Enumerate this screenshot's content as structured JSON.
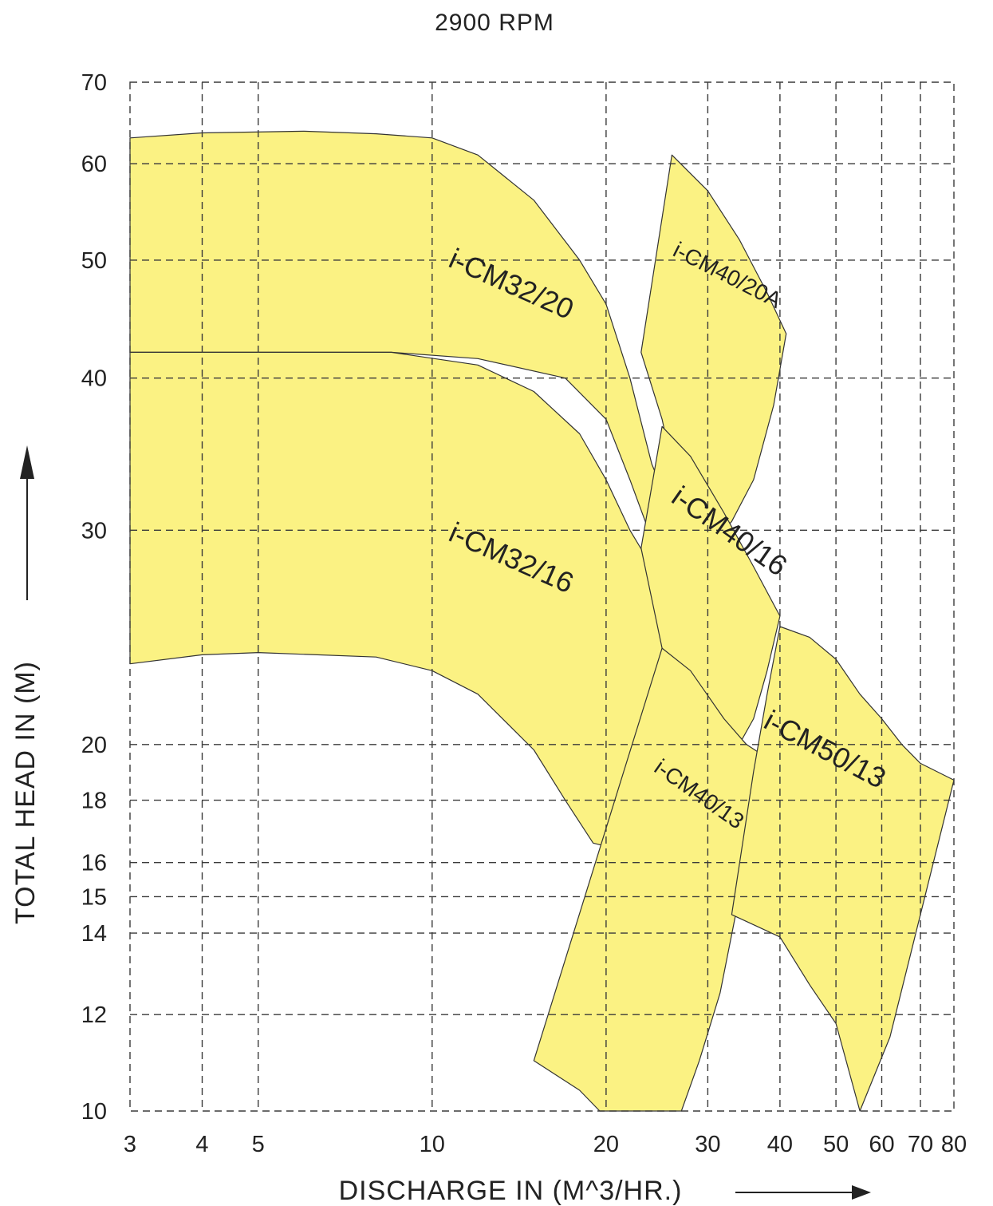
{
  "chart_data": {
    "type": "area",
    "title": "2900 RPM",
    "xlabel": "DISCHARGE IN (M^3/HR.)",
    "ylabel": "TOTAL HEAD IN (M)",
    "x_scale": "log",
    "y_scale": "log",
    "xlim": [
      3,
      80
    ],
    "ylim": [
      10,
      70
    ],
    "x_ticks": [
      3,
      4,
      5,
      10,
      20,
      30,
      40,
      50,
      60,
      70,
      80
    ],
    "x_tick_labels": [
      "3",
      "4",
      "5",
      "10",
      "20",
      "30",
      "40",
      "50",
      "60",
      "70",
      "80"
    ],
    "y_ticks": [
      10,
      12,
      14,
      15,
      16,
      18,
      20,
      30,
      40,
      50,
      60,
      70
    ],
    "y_tick_labels": [
      "10",
      "12",
      "14",
      "15",
      "16",
      "18",
      "20",
      "30",
      "40",
      "50",
      "60",
      "70"
    ],
    "grid": true,
    "fill_color": "#fbf283",
    "series": [
      {
        "name": "i-CM32/20",
        "label_at": [
          13.5,
          47
        ],
        "label_angle": 24,
        "points": [
          [
            3,
            63
          ],
          [
            4,
            63.6
          ],
          [
            6,
            63.8
          ],
          [
            8,
            63.5
          ],
          [
            10,
            63
          ],
          [
            12,
            61
          ],
          [
            15,
            56
          ],
          [
            18,
            50
          ],
          [
            20,
            46
          ],
          [
            22,
            40
          ],
          [
            24,
            34
          ],
          [
            26,
            31
          ],
          [
            24,
            29.5
          ],
          [
            22,
            33
          ],
          [
            20,
            37
          ],
          [
            17,
            40
          ],
          [
            12,
            41.5
          ],
          [
            8.5,
            42
          ],
          [
            5,
            42
          ],
          [
            3,
            42
          ]
        ]
      },
      {
        "name": "i-CM32/16",
        "label_at": [
          13.5,
          28
        ],
        "label_angle": 24,
        "points": [
          [
            3,
            42
          ],
          [
            5,
            42
          ],
          [
            8.5,
            42
          ],
          [
            12,
            41
          ],
          [
            15,
            39
          ],
          [
            18,
            36
          ],
          [
            20,
            33
          ],
          [
            22,
            30
          ],
          [
            24,
            28
          ],
          [
            26,
            26
          ],
          [
            24.5,
            23
          ],
          [
            23.5,
            19
          ],
          [
            22,
            17
          ],
          [
            20,
            16.5
          ],
          [
            19,
            16.6
          ],
          [
            17,
            18
          ],
          [
            15,
            19.8
          ],
          [
            12,
            22
          ],
          [
            10,
            23
          ],
          [
            8,
            23.6
          ],
          [
            5,
            23.8
          ],
          [
            4,
            23.7
          ],
          [
            3,
            23.3
          ]
        ]
      },
      {
        "name": "i-CM40/20A",
        "label_at": [
          32,
          48
        ],
        "label_angle": 27,
        "points": [
          [
            26,
            61
          ],
          [
            30,
            57
          ],
          [
            34,
            52
          ],
          [
            38,
            47
          ],
          [
            41,
            43.5
          ],
          [
            39,
            38
          ],
          [
            36,
            33
          ],
          [
            33,
            30.5
          ],
          [
            31,
            29.5
          ],
          [
            28,
            31
          ],
          [
            26,
            34
          ],
          [
            25,
            37
          ],
          [
            23,
            42
          ]
        ]
      },
      {
        "name": "i-CM40/16",
        "label_at": [
          32,
          29.5
        ],
        "label_angle": 35,
        "points": [
          [
            25,
            36.5
          ],
          [
            28,
            34.5
          ],
          [
            32,
            31
          ],
          [
            36,
            28
          ],
          [
            40,
            25.5
          ],
          [
            38,
            23
          ],
          [
            36,
            21
          ],
          [
            33,
            19.5
          ],
          [
            30,
            19.3
          ],
          [
            27,
            19.3
          ],
          [
            26,
            20
          ],
          [
            25,
            24
          ],
          [
            23,
            29
          ]
        ]
      },
      {
        "name": "i-CM40/13",
        "label_at": [
          28.5,
          18
        ],
        "label_angle": 35,
        "points": [
          [
            25,
            24
          ],
          [
            28,
            23
          ],
          [
            32,
            21
          ],
          [
            35,
            20
          ],
          [
            38,
            19.5
          ],
          [
            36,
            17
          ],
          [
            34,
            15
          ],
          [
            31.5,
            12.5
          ],
          [
            29,
            11
          ],
          [
            27,
            10
          ],
          [
            19.5,
            10
          ],
          [
            18,
            10.4
          ],
          [
            15,
            11
          ]
        ]
      },
      {
        "name": "i-CM50/13",
        "label_at": [
          47,
          19.5
        ],
        "label_angle": 28,
        "points": [
          [
            40,
            25
          ],
          [
            45,
            24.5
          ],
          [
            50,
            23.5
          ],
          [
            55,
            22
          ],
          [
            60,
            21
          ],
          [
            65,
            20
          ],
          [
            70,
            19.3
          ],
          [
            80,
            18.7
          ],
          [
            70,
            14.5
          ],
          [
            62,
            11.5
          ],
          [
            55,
            10
          ],
          [
            50,
            11.8
          ],
          [
            45,
            12.7
          ],
          [
            40,
            13.9
          ],
          [
            33,
            14.5
          ],
          [
            36,
            19
          ],
          [
            38,
            22
          ]
        ]
      }
    ]
  }
}
